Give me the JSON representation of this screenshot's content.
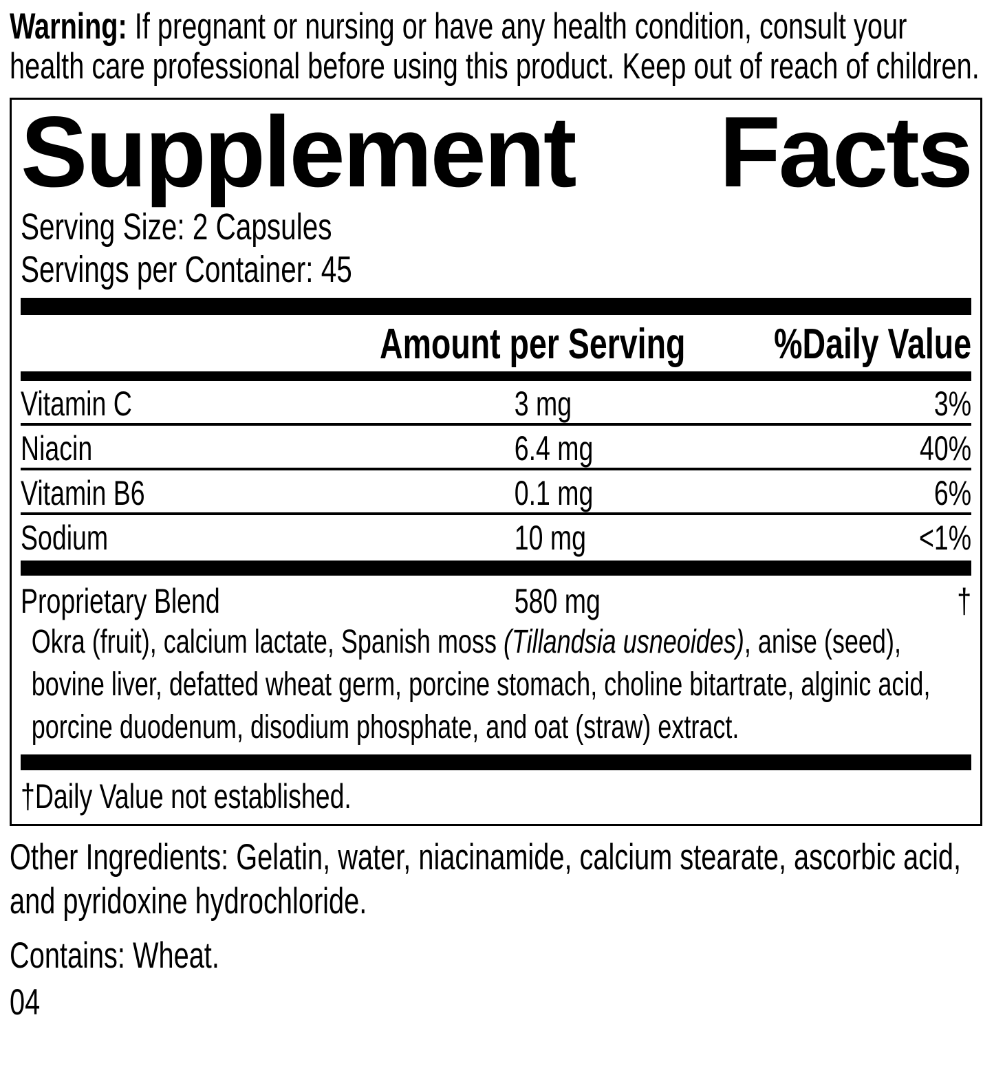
{
  "warning": {
    "label": "Warning:",
    "text": "If pregnant or nursing or have any health condition, consult your health care professional before using this product. Keep out of reach of children."
  },
  "panel": {
    "title": {
      "word1": "Supplement",
      "word2": "Facts"
    },
    "serving_size": "Serving Size: 2 Capsules",
    "servings_per_container": "Servings per Container: 45",
    "columns": {
      "amount": "Amount per Serving",
      "dv": "%Daily Value"
    },
    "nutrients": [
      {
        "name": "Vitamin C",
        "amount": "3 mg",
        "dv": "3%"
      },
      {
        "name": "Niacin",
        "amount": "6.4 mg",
        "dv": "40%"
      },
      {
        "name": "Vitamin B6",
        "amount": "0.1 mg",
        "dv": "6%"
      },
      {
        "name": "Sodium",
        "amount": "10 mg",
        "dv": "<1%"
      }
    ],
    "blend": {
      "name": "Proprietary Blend",
      "amount": "580 mg",
      "dv": "†",
      "description_pre": "Okra (fruit), calcium lactate, Spanish moss ",
      "description_italic": "(Tillandsia usneoides)",
      "description_post": ", anise (seed), bovine liver, defatted wheat germ, porcine stomach, choline bitartrate, alginic acid, porcine duodenum, disodium phosphate, and oat (straw) extract."
    },
    "footnote": "†Daily Value not established."
  },
  "other_ingredients": "Other Ingredients: Gelatin, water, niacinamide, calcium stearate, ascorbic acid, and pyridoxine hydrochloride.",
  "contains": "Contains: Wheat.",
  "code": "04",
  "colors": {
    "text": "#000000",
    "background": "#ffffff",
    "rule": "#000000"
  }
}
